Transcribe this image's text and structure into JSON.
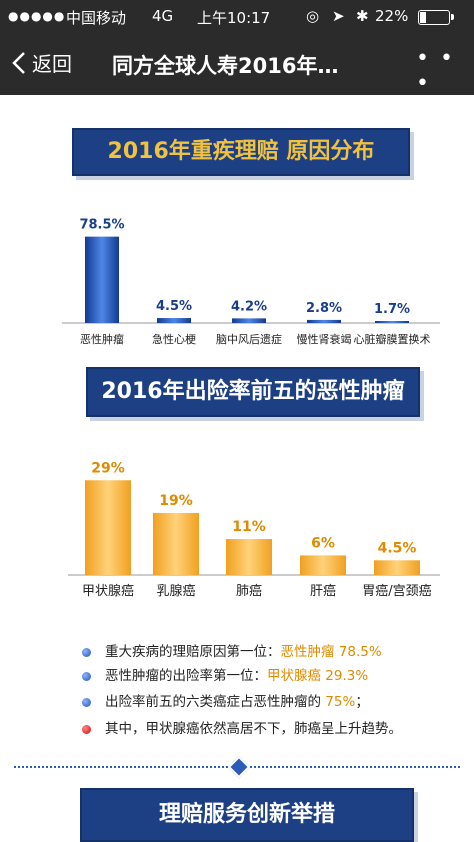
{
  "status_bar": {
    "dots": "●●●●●",
    "carrier": "中国移动",
    "network": "4G",
    "time": "上午10:17",
    "battery_text": "22%",
    "battery_level": 0.22
  },
  "nav": {
    "back_label": "返回",
    "title": "同方全球人寿2016年…",
    "more_label": "• • •"
  },
  "section1": {
    "title": "2016年重疾理赔 原因分布"
  },
  "section2": {
    "title": "2016年出险率前五的恶性肿瘤"
  },
  "section3": {
    "title": "理赔服务创新举措"
  },
  "chart_data": [
    {
      "type": "bar",
      "title": "2016年重疾理赔 原因分布",
      "categories": [
        "恶性肿瘤",
        "急性心梗",
        "脑中风后遗症",
        "慢性肾衰竭",
        "心脏瓣膜置换术"
      ],
      "values": [
        78.5,
        4.5,
        4.2,
        2.8,
        1.7
      ],
      "value_labels": [
        "78.5%",
        "4.5%",
        "4.2%",
        "2.8%",
        "1.7%"
      ],
      "color": "#2d63c9",
      "ylim": [
        0,
        100
      ]
    },
    {
      "type": "bar",
      "title": "2016年出险率前五的恶性肿瘤",
      "categories": [
        "甲状腺癌",
        "乳腺癌",
        "肺癌",
        "肝癌",
        "胃癌/宫颈癌"
      ],
      "values": [
        29,
        19,
        11,
        6,
        4.5
      ],
      "value_labels": [
        "29%",
        "19%",
        "11%",
        "6%",
        "4.5%"
      ],
      "color": "#f5a623",
      "ylim": [
        0,
        30
      ]
    }
  ],
  "bullets": [
    {
      "text": "重大疾病的理赔原因第一位：",
      "highlight": "恶性肿瘤",
      "tail": "78.5%",
      "dot": "blue"
    },
    {
      "text": "恶性肿瘤的出险率第一位：",
      "highlight": "甲状腺癌",
      "tail": "29.3%",
      "dot": "blue"
    },
    {
      "text": "出险率前五的六类癌症占恶性肿瘤的",
      "highlight": "75%",
      "tail": "；",
      "dot": "blue"
    },
    {
      "text": "其中，甲状腺癌依然高居不下，肺癌呈上升趋势。",
      "highlight": "",
      "tail": "",
      "dot": "red"
    }
  ],
  "colors": {
    "nav_bg": "#2b2b2b",
    "banner_bg": "#1d3f84",
    "banner_gold": "#f0c23e",
    "accent_orange": "#e08a00"
  }
}
